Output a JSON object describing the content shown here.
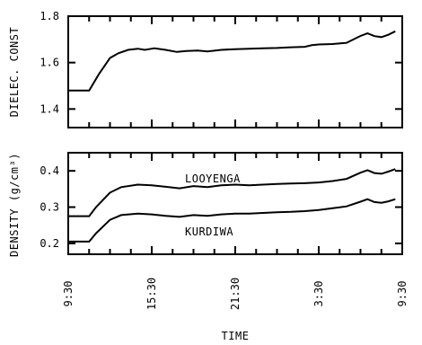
{
  "chart_data": [
    {
      "type": "line",
      "ylabel": "DIELEC. CONST",
      "ylim": [
        1.32,
        1.8
      ],
      "yticks": [
        1.4,
        1.6,
        1.8
      ],
      "ytick_labels": [
        "1.4",
        "1.6",
        "1.8"
      ],
      "xlim": [
        0,
        24
      ],
      "series": [
        {
          "x": [
            0,
            1.5,
            2.2,
            3.0,
            3.6,
            4.3,
            5.0,
            5.5,
            6.2,
            7.0,
            7.8,
            8.5,
            9.3,
            10.0,
            11.0,
            12.0,
            13.0,
            14.0,
            15.0,
            16.0,
            17.0,
            17.5,
            18.0,
            19.0,
            20.0,
            21.0,
            21.5,
            22.0,
            22.5,
            23.0,
            23.5
          ],
          "y": [
            1.48,
            1.48,
            1.55,
            1.62,
            1.64,
            1.655,
            1.66,
            1.655,
            1.662,
            1.655,
            1.646,
            1.65,
            1.652,
            1.648,
            1.655,
            1.658,
            1.66,
            1.662,
            1.663,
            1.666,
            1.668,
            1.675,
            1.678,
            1.68,
            1.685,
            1.715,
            1.726,
            1.714,
            1.71,
            1.72,
            1.735
          ]
        }
      ]
    },
    {
      "type": "line",
      "ylabel": "DENSITY (g/cm³)",
      "ylim": [
        0.17,
        0.45
      ],
      "yticks": [
        0.2,
        0.3,
        0.4
      ],
      "ytick_labels": [
        "0.2",
        "0.3",
        "0.4"
      ],
      "xlim": [
        0,
        24
      ],
      "xticks": [
        0,
        6,
        12,
        18,
        24
      ],
      "xtick_labels": [
        "9:30",
        "15:30",
        "21:30",
        "3:30",
        "9:30"
      ],
      "xlabel": "TIME",
      "series": [
        {
          "name": "LOOYENGA",
          "x": [
            0,
            1.5,
            2.0,
            3.0,
            3.8,
            5.0,
            6.0,
            7.0,
            8.0,
            9.0,
            10.0,
            11.0,
            12.0,
            13.0,
            14.0,
            15.0,
            16.0,
            17.0,
            18.0,
            19.0,
            20.0,
            21.0,
            21.5,
            22.0,
            22.5,
            23.0,
            23.5
          ],
          "y": [
            0.275,
            0.275,
            0.3,
            0.34,
            0.355,
            0.362,
            0.36,
            0.356,
            0.352,
            0.358,
            0.355,
            0.36,
            0.362,
            0.36,
            0.362,
            0.364,
            0.365,
            0.366,
            0.368,
            0.372,
            0.378,
            0.395,
            0.402,
            0.394,
            0.392,
            0.398,
            0.405
          ]
        },
        {
          "name": "KURDIWA",
          "x": [
            0,
            1.5,
            2.0,
            3.0,
            3.8,
            5.0,
            6.0,
            7.0,
            8.0,
            9.0,
            10.0,
            11.0,
            12.0,
            13.0,
            14.0,
            15.0,
            16.0,
            17.0,
            18.0,
            19.0,
            20.0,
            21.0,
            21.5,
            22.0,
            22.5,
            23.0,
            23.5
          ],
          "y": [
            0.205,
            0.205,
            0.228,
            0.265,
            0.278,
            0.282,
            0.28,
            0.276,
            0.273,
            0.278,
            0.276,
            0.28,
            0.282,
            0.282,
            0.284,
            0.286,
            0.287,
            0.289,
            0.292,
            0.297,
            0.302,
            0.315,
            0.322,
            0.314,
            0.312,
            0.316,
            0.322
          ]
        }
      ]
    }
  ]
}
